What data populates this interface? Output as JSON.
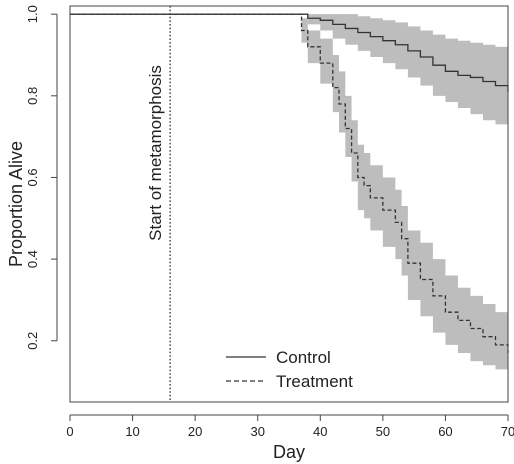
{
  "chart_data": {
    "type": "line",
    "xlabel": "Day",
    "ylabel": "Proportion Alive",
    "xlim": [
      0,
      70
    ],
    "ylim": [
      0.05,
      1.02
    ],
    "xticks": [
      0,
      10,
      20,
      30,
      40,
      50,
      60,
      70
    ],
    "yticks": [
      0.2,
      0.4,
      0.6,
      0.8,
      1.0
    ],
    "ytick_labels": [
      "0.2",
      "0.4",
      "0.6",
      "0.8",
      "1.0"
    ],
    "annotation": {
      "text": "Start of metamorphosis",
      "x": 16
    },
    "legend": {
      "position": "bottom-center",
      "entries": [
        "Control",
        "Treatment"
      ]
    },
    "series": [
      {
        "name": "Control",
        "style": "solid",
        "x": [
          0,
          36,
          38,
          40,
          42,
          44,
          46,
          48,
          50,
          52,
          54,
          56,
          58,
          60,
          62,
          64,
          66,
          68,
          70
        ],
        "y": [
          1.0,
          1.0,
          0.99,
          0.985,
          0.975,
          0.965,
          0.955,
          0.945,
          0.935,
          0.925,
          0.91,
          0.895,
          0.875,
          0.86,
          0.85,
          0.845,
          0.835,
          0.825,
          0.81
        ],
        "lower": [
          1.0,
          1.0,
          0.975,
          0.96,
          0.94,
          0.925,
          0.91,
          0.895,
          0.88,
          0.865,
          0.845,
          0.825,
          0.8,
          0.785,
          0.77,
          0.755,
          0.74,
          0.73,
          0.72
        ],
        "upper": [
          1.0,
          1.0,
          1.0,
          1.0,
          1.0,
          1.0,
          0.995,
          0.99,
          0.985,
          0.98,
          0.97,
          0.96,
          0.95,
          0.94,
          0.935,
          0.93,
          0.925,
          0.92,
          0.91
        ]
      },
      {
        "name": "Treatment",
        "style": "dashed",
        "x": [
          0,
          36,
          37,
          38,
          40,
          42,
          43,
          44,
          45,
          46,
          47,
          48,
          50,
          52,
          53,
          54,
          56,
          58,
          60,
          62,
          64,
          66,
          68,
          70
        ],
        "y": [
          1.0,
          1.0,
          0.96,
          0.92,
          0.88,
          0.82,
          0.78,
          0.72,
          0.66,
          0.6,
          0.58,
          0.55,
          0.52,
          0.49,
          0.45,
          0.39,
          0.35,
          0.31,
          0.27,
          0.25,
          0.23,
          0.21,
          0.19,
          0.17
        ],
        "lower": [
          1.0,
          1.0,
          0.93,
          0.88,
          0.83,
          0.76,
          0.71,
          0.65,
          0.59,
          0.52,
          0.5,
          0.47,
          0.43,
          0.4,
          0.36,
          0.3,
          0.26,
          0.22,
          0.19,
          0.17,
          0.15,
          0.14,
          0.13,
          0.12
        ],
        "upper": [
          1.0,
          1.0,
          0.99,
          0.96,
          0.94,
          0.9,
          0.86,
          0.8,
          0.74,
          0.68,
          0.66,
          0.63,
          0.6,
          0.57,
          0.53,
          0.47,
          0.44,
          0.4,
          0.36,
          0.33,
          0.31,
          0.29,
          0.27,
          0.25
        ]
      }
    ],
    "colors": {
      "ci_band": "#bdbdbd",
      "lines": "#333333",
      "axis": "#444444"
    }
  }
}
